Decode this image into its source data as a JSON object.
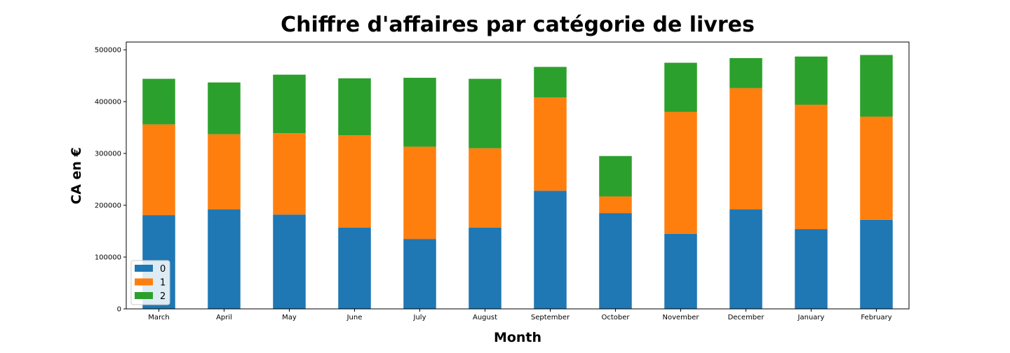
{
  "chart_data": {
    "type": "bar",
    "stacked": true,
    "title": "Chiffre d'affaires par catégorie de livres",
    "xlabel": "Month",
    "ylabel": "CA en €",
    "ylim": [
      0,
      515000
    ],
    "yticks": [
      0,
      100000,
      200000,
      300000,
      400000,
      500000
    ],
    "yticklabels": [
      "0",
      "100000",
      "200000",
      "300000",
      "400000",
      "500000"
    ],
    "grid": false,
    "legend_position": "lower-left",
    "categories": [
      "March",
      "April",
      "May",
      "June",
      "July",
      "August",
      "September",
      "October",
      "November",
      "December",
      "January",
      "February"
    ],
    "series": [
      {
        "name": "0",
        "color": "#1f77b4",
        "values": [
          181000,
          192000,
          182000,
          157000,
          135000,
          157000,
          228000,
          185000,
          145000,
          192000,
          154000,
          172000
        ]
      },
      {
        "name": "1",
        "color": "#ff7f0e",
        "values": [
          175000,
          145000,
          157000,
          178000,
          178000,
          153000,
          180000,
          32000,
          235000,
          234000,
          240000,
          199000
        ]
      },
      {
        "name": "2",
        "color": "#2ca02c",
        "values": [
          88000,
          100000,
          113000,
          110000,
          133000,
          134000,
          59000,
          78000,
          95000,
          58000,
          93000,
          119000
        ]
      }
    ]
  }
}
